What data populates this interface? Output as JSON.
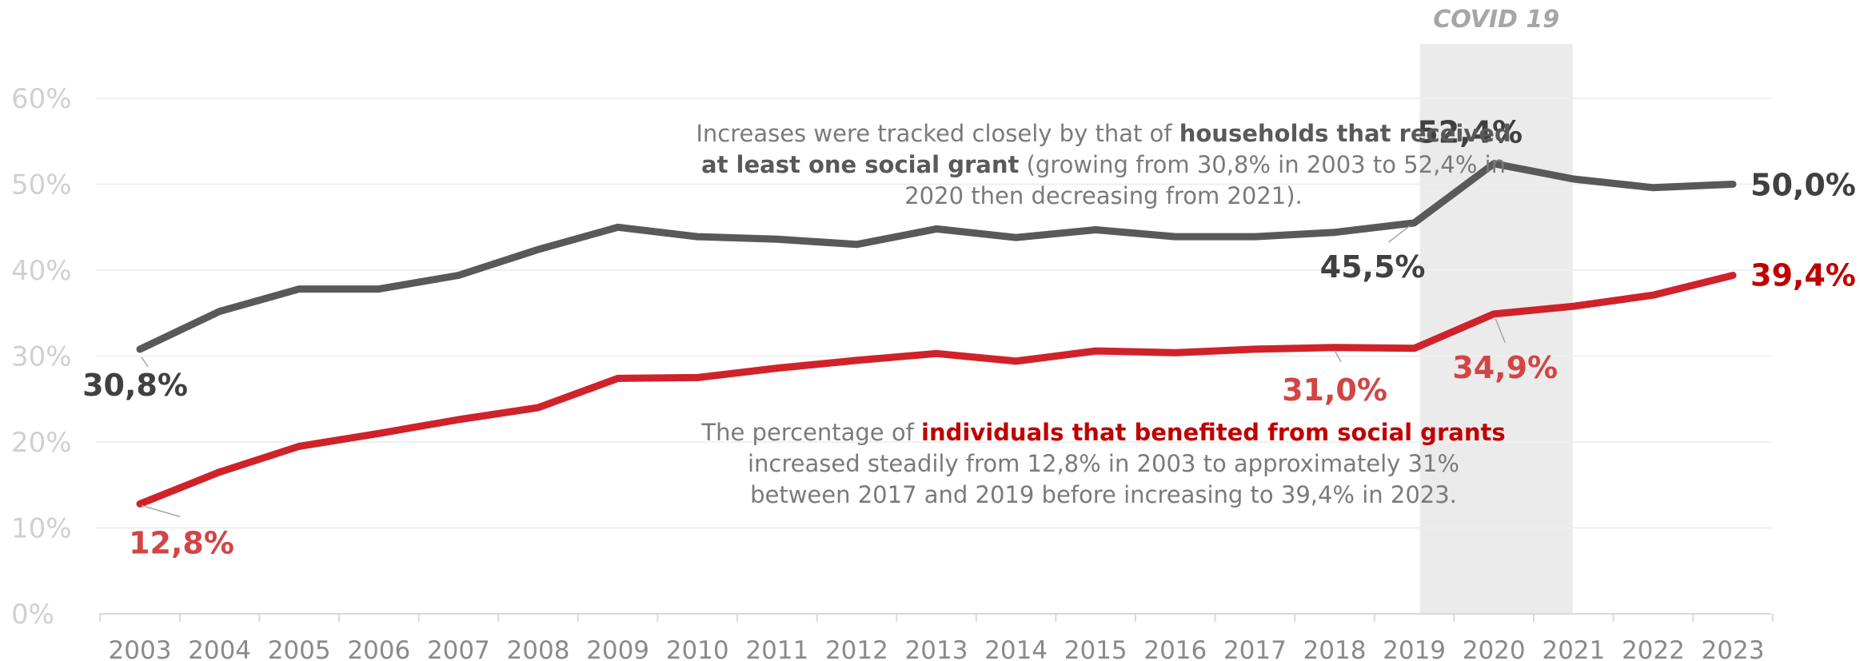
{
  "chart_data": {
    "type": "line",
    "title": "",
    "xlabel": "",
    "ylabel": "",
    "x": [
      "2003",
      "2004",
      "2005",
      "2006",
      "2007",
      "2008",
      "2009",
      "2010",
      "2011",
      "2012",
      "2013",
      "2014",
      "2015",
      "2016",
      "2017",
      "2018",
      "2019",
      "2020",
      "2021",
      "2022",
      "2023"
    ],
    "ylim": [
      0,
      60
    ],
    "y_ticks": [
      "0%",
      "10%",
      "20%",
      "30%",
      "40%",
      "50%",
      "60%"
    ],
    "grid": true,
    "series": [
      {
        "key": "households",
        "color": "#595959",
        "values": [
          30.8,
          35.2,
          37.8,
          37.8,
          39.4,
          42.4,
          45.0,
          43.9,
          43.6,
          43.0,
          44.8,
          43.8,
          44.7,
          43.9,
          43.9,
          44.4,
          45.5,
          52.4,
          50.6,
          49.6,
          50.0
        ]
      },
      {
        "key": "individuals",
        "color": "#d0222a",
        "values": [
          12.8,
          16.5,
          19.5,
          21.0,
          22.6,
          24.0,
          27.4,
          27.5,
          28.6,
          29.5,
          30.3,
          29.4,
          30.6,
          30.4,
          30.8,
          31.0,
          30.9,
          34.9,
          35.8,
          37.1,
          39.4
        ]
      }
    ],
    "highlight_band": {
      "label": "COVID 19",
      "from": "2019",
      "to": "2021"
    },
    "data_labels": [
      {
        "series": "households",
        "x": "2003",
        "text": "30,8%",
        "style": "dark"
      },
      {
        "series": "households",
        "x": "2019",
        "text": "45,5%",
        "style": "dark"
      },
      {
        "series": "households",
        "x": "2020",
        "text": "52,4%",
        "style": "dark"
      },
      {
        "series": "households",
        "x": "2023",
        "text": "50,0%",
        "style": "dark"
      },
      {
        "series": "individuals",
        "x": "2003",
        "text": "12,8%",
        "style": "red"
      },
      {
        "series": "individuals",
        "x": "2018",
        "text": "31,0%",
        "style": "red"
      },
      {
        "series": "individuals",
        "x": "2020",
        "text": "34,9%",
        "style": "red"
      },
      {
        "series": "individuals",
        "x": "2023",
        "text": "39,4%",
        "style": "redstrong"
      }
    ]
  },
  "annotations": {
    "households": {
      "line1_pre": "Increases were tracked closely by that of ",
      "line1_bold": "households that received",
      "line2_bold": "at least one social grant",
      "line2_post": " (growing from 30,8% in 2003 to 52,4% in",
      "line3": "2020 then decreasing from 2021)."
    },
    "individuals": {
      "line1_pre": "The percentage of ",
      "line1_bold": "individuals that benefited from social grants",
      "line2": "increased steadily from 12,8% in 2003 to approximately 31%",
      "line3": "between 2017 and 2019 before increasing to 39,4% in 2023."
    }
  },
  "colors": {
    "households_line": "#595959",
    "individuals_line": "#d0222a",
    "covid_band": "#ebebeb",
    "gridline": "#efefef",
    "axis": "#d9d9d9"
  }
}
